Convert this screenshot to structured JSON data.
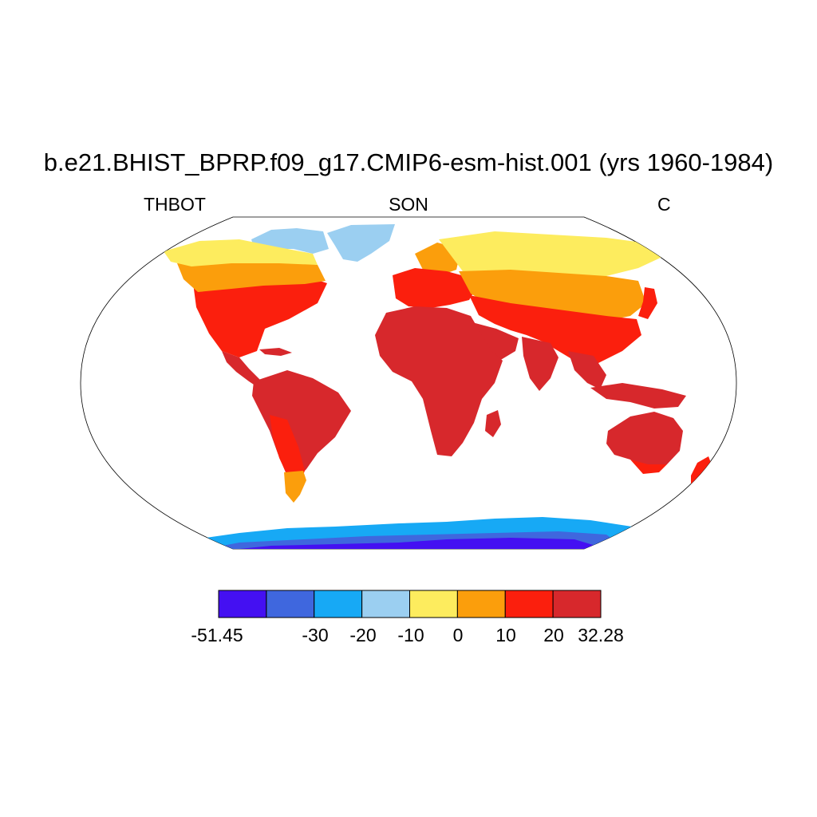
{
  "title": "b.e21.BHIST_BPRP.f09_g17.CMIP6-esm-hist.001 (yrs 1960-1984)",
  "subtitles": {
    "left": "THBOT",
    "center": "SON",
    "right": "C"
  },
  "colorbar": {
    "colors": [
      "#4410f2",
      "#3f67de",
      "#17a9f5",
      "#9bcff1",
      "#fdec5e",
      "#fb9e0c",
      "#fb1f0d",
      "#d7282c"
    ],
    "labels": [
      "-51.45",
      "-30",
      "-20",
      "-10",
      "0",
      "10",
      "20",
      "32.28"
    ]
  },
  "palette": {
    "c1": "#4410f2",
    "c2": "#3f67de",
    "c3": "#17a9f5",
    "c4": "#9bcff1",
    "c5": "#fdec5e",
    "c6": "#fb9e0c",
    "c7": "#fb1f0d",
    "c8": "#d7282c"
  }
}
